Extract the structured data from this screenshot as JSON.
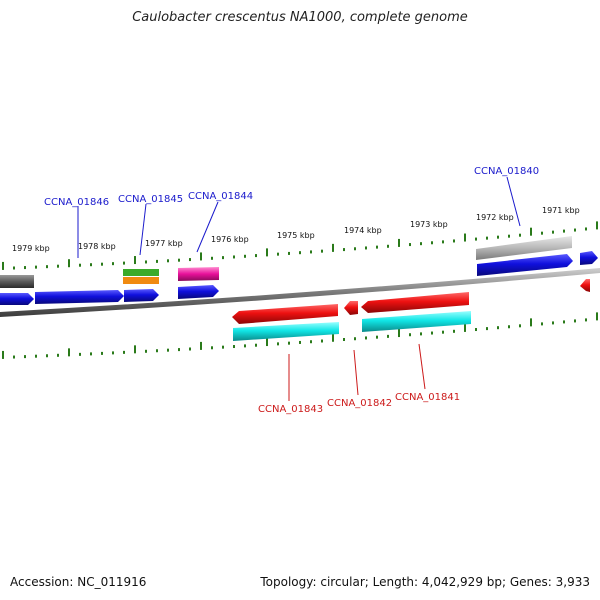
{
  "title": "Caulobacter crescentus NA1000, complete genome",
  "accession_text": "Accession: NC_011916",
  "summary_text": "Topology: circular; Length: 4,042,929 bp; Genes: 3,933",
  "ticks": [
    "1979 kbp",
    "1978 kbp",
    "1977 kbp",
    "1976 kbp",
    "1975 kbp",
    "1974 kbp",
    "1973 kbp",
    "1972 kbp",
    "1971 kbp"
  ],
  "genes_top": [
    "CCNA_01846",
    "CCNA_01845",
    "CCNA_01844",
    "CCNA_01840"
  ],
  "genes_bottom": [
    "CCNA_01843",
    "CCNA_01842",
    "CCNA_01841"
  ],
  "colors": {
    "forward_label": "#1a1acc",
    "reverse_label": "#cc1a1a",
    "forward_gene": "#1010dd",
    "reverse_gene": "#ee1111",
    "tick": "#2a7a1a",
    "backbone": "#8a8a8a"
  }
}
